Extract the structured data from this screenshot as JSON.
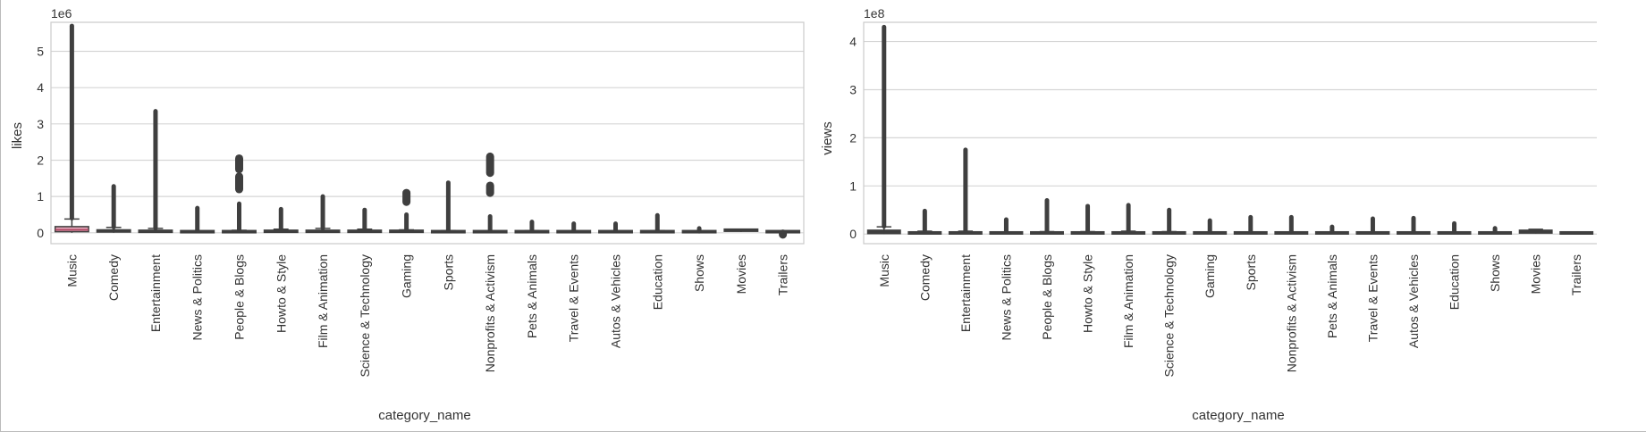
{
  "chart_data": [
    {
      "type": "box",
      "xlabel": "category_name",
      "ylabel": "likes",
      "offset_label": "1e6",
      "ylim": [
        -0.3,
        5.8
      ],
      "yticks": [
        0,
        1,
        2,
        3,
        4,
        5
      ],
      "ytick_labels": [
        "0",
        "1",
        "2",
        "3",
        "4",
        "5"
      ],
      "grid": "horizontal",
      "categories": [
        "Music",
        "Comedy",
        "Entertainment",
        "News & Politics",
        "People & Blogs",
        "Howto & Style",
        "Film & Animation",
        "Science & Technology",
        "Gaming",
        "Sports",
        "Nonprofits & Activism",
        "Pets & Animals",
        "Travel & Events",
        "Autos & Vehicles",
        "Education",
        "Shows",
        "Movies",
        "Trailers"
      ],
      "boxes": [
        {
          "q1": 0.03,
          "median": 0.08,
          "q3": 0.17,
          "whisker_low": 0.0,
          "whisker_high": 0.38,
          "outlier_min": 0.4,
          "outlier_max": 5.7,
          "clusters": []
        },
        {
          "q1": 0.02,
          "median": 0.04,
          "q3": 0.08,
          "whisker_low": 0.0,
          "whisker_high": 0.15,
          "outlier_min": 0.16,
          "outlier_max": 1.28,
          "clusters": []
        },
        {
          "q1": 0.01,
          "median": 0.03,
          "q3": 0.07,
          "whisker_low": 0.0,
          "whisker_high": 0.12,
          "outlier_min": 0.13,
          "outlier_max": 3.35,
          "clusters": []
        },
        {
          "q1": 0.0,
          "median": 0.01,
          "q3": 0.02,
          "whisker_low": 0.0,
          "whisker_high": 0.05,
          "outlier_min": 0.06,
          "outlier_max": 0.68,
          "clusters": []
        },
        {
          "q1": 0.0,
          "median": 0.01,
          "q3": 0.03,
          "whisker_low": 0.0,
          "whisker_high": 0.07,
          "outlier_min": 0.08,
          "outlier_max": 0.8,
          "clusters": [
            [
              1.2,
              1.55
            ],
            [
              1.75,
              2.05
            ]
          ]
        },
        {
          "q1": 0.01,
          "median": 0.02,
          "q3": 0.05,
          "whisker_low": 0.0,
          "whisker_high": 0.1,
          "outlier_min": 0.11,
          "outlier_max": 0.65,
          "clusters": []
        },
        {
          "q1": 0.01,
          "median": 0.02,
          "q3": 0.06,
          "whisker_low": 0.0,
          "whisker_high": 0.12,
          "outlier_min": 0.13,
          "outlier_max": 1.0,
          "clusters": []
        },
        {
          "q1": 0.01,
          "median": 0.02,
          "q3": 0.05,
          "whisker_low": 0.0,
          "whisker_high": 0.1,
          "outlier_min": 0.11,
          "outlier_max": 0.63,
          "clusters": []
        },
        {
          "q1": 0.01,
          "median": 0.02,
          "q3": 0.04,
          "whisker_low": 0.0,
          "whisker_high": 0.08,
          "outlier_min": 0.09,
          "outlier_max": 0.5,
          "clusters": [
            [
              0.85,
              1.1
            ]
          ]
        },
        {
          "q1": 0.0,
          "median": 0.01,
          "q3": 0.03,
          "whisker_low": 0.0,
          "whisker_high": 0.06,
          "outlier_min": 0.07,
          "outlier_max": 1.38,
          "clusters": []
        },
        {
          "q1": 0.0,
          "median": 0.01,
          "q3": 0.02,
          "whisker_low": 0.0,
          "whisker_high": 0.04,
          "outlier_min": 0.05,
          "outlier_max": 0.45,
          "clusters": [
            [
              1.1,
              1.3
            ],
            [
              1.65,
              2.1
            ]
          ]
        },
        {
          "q1": 0.0,
          "median": 0.01,
          "q3": 0.03,
          "whisker_low": 0.0,
          "whisker_high": 0.06,
          "outlier_min": 0.07,
          "outlier_max": 0.3,
          "clusters": []
        },
        {
          "q1": 0.0,
          "median": 0.01,
          "q3": 0.02,
          "whisker_low": 0.0,
          "whisker_high": 0.05,
          "outlier_min": 0.06,
          "outlier_max": 0.25,
          "clusters": []
        },
        {
          "q1": 0.0,
          "median": 0.01,
          "q3": 0.02,
          "whisker_low": 0.0,
          "whisker_high": 0.05,
          "outlier_min": 0.06,
          "outlier_max": 0.25,
          "clusters": []
        },
        {
          "q1": 0.0,
          "median": 0.01,
          "q3": 0.03,
          "whisker_low": 0.0,
          "whisker_high": 0.06,
          "outlier_min": 0.07,
          "outlier_max": 0.48,
          "clusters": []
        },
        {
          "q1": 0.0,
          "median": 0.01,
          "q3": 0.02,
          "whisker_low": 0.0,
          "whisker_high": 0.03,
          "outlier_min": 0.04,
          "outlier_max": 0.12,
          "clusters": []
        },
        {
          "q1": 0.04,
          "median": 0.06,
          "q3": 0.09,
          "whisker_low": 0.02,
          "whisker_high": 0.1,
          "outlier_min": null,
          "outlier_max": null,
          "clusters": []
        },
        {
          "q1": 0.0,
          "median": 0.0,
          "q3": 0.01,
          "whisker_low": 0.0,
          "whisker_high": 0.01,
          "outlier_min": null,
          "outlier_max": null,
          "clusters": [
            [
              -0.05,
              -0.02
            ]
          ]
        }
      ]
    },
    {
      "type": "box",
      "xlabel": "category_name",
      "ylabel": "views",
      "offset_label": "1e8",
      "ylim": [
        -0.2,
        4.4
      ],
      "yticks": [
        0,
        1,
        2,
        3,
        4
      ],
      "ytick_labels": [
        "0",
        "1",
        "2",
        "3",
        "4"
      ],
      "grid": "horizontal",
      "categories": [
        "Music",
        "Comedy",
        "Entertainment",
        "News & Politics",
        "People & Blogs",
        "Howto & Style",
        "Film & Animation",
        "Science & Technology",
        "Gaming",
        "Sports",
        "Nonprofits & Activism",
        "Pets & Animals",
        "Travel & Events",
        "Autos & Vehicles",
        "Education",
        "Shows",
        "Movies",
        "Trailers"
      ],
      "boxes": [
        {
          "q1": 0.01,
          "median": 0.03,
          "q3": 0.08,
          "whisker_low": 0.0,
          "whisker_high": 0.15,
          "outlier_min": 0.16,
          "outlier_max": 4.3,
          "clusters": []
        },
        {
          "q1": 0.0,
          "median": 0.01,
          "q3": 0.03,
          "whisker_low": 0.0,
          "whisker_high": 0.06,
          "outlier_min": 0.07,
          "outlier_max": 0.48,
          "clusters": []
        },
        {
          "q1": 0.0,
          "median": 0.01,
          "q3": 0.03,
          "whisker_low": 0.0,
          "whisker_high": 0.06,
          "outlier_min": 0.07,
          "outlier_max": 1.75,
          "clusters": []
        },
        {
          "q1": 0.0,
          "median": 0.01,
          "q3": 0.02,
          "whisker_low": 0.0,
          "whisker_high": 0.04,
          "outlier_min": 0.05,
          "outlier_max": 0.3,
          "clusters": []
        },
        {
          "q1": 0.0,
          "median": 0.01,
          "q3": 0.02,
          "whisker_low": 0.0,
          "whisker_high": 0.05,
          "outlier_min": 0.06,
          "outlier_max": 0.7,
          "clusters": []
        },
        {
          "q1": 0.0,
          "median": 0.01,
          "q3": 0.03,
          "whisker_low": 0.0,
          "whisker_high": 0.05,
          "outlier_min": 0.06,
          "outlier_max": 0.58,
          "clusters": []
        },
        {
          "q1": 0.0,
          "median": 0.01,
          "q3": 0.03,
          "whisker_low": 0.0,
          "whisker_high": 0.06,
          "outlier_min": 0.07,
          "outlier_max": 0.6,
          "clusters": []
        },
        {
          "q1": 0.0,
          "median": 0.01,
          "q3": 0.03,
          "whisker_low": 0.0,
          "whisker_high": 0.05,
          "outlier_min": 0.06,
          "outlier_max": 0.5,
          "clusters": []
        },
        {
          "q1": 0.0,
          "median": 0.01,
          "q3": 0.02,
          "whisker_low": 0.0,
          "whisker_high": 0.04,
          "outlier_min": 0.05,
          "outlier_max": 0.28,
          "clusters": []
        },
        {
          "q1": 0.0,
          "median": 0.01,
          "q3": 0.02,
          "whisker_low": 0.0,
          "whisker_high": 0.04,
          "outlier_min": 0.05,
          "outlier_max": 0.35,
          "clusters": []
        },
        {
          "q1": 0.0,
          "median": 0.01,
          "q3": 0.02,
          "whisker_low": 0.0,
          "whisker_high": 0.03,
          "outlier_min": 0.04,
          "outlier_max": 0.35,
          "clusters": []
        },
        {
          "q1": 0.0,
          "median": 0.01,
          "q3": 0.02,
          "whisker_low": 0.0,
          "whisker_high": 0.03,
          "outlier_min": 0.04,
          "outlier_max": 0.15,
          "clusters": []
        },
        {
          "q1": 0.0,
          "median": 0.01,
          "q3": 0.02,
          "whisker_low": 0.0,
          "whisker_high": 0.04,
          "outlier_min": 0.05,
          "outlier_max": 0.32,
          "clusters": []
        },
        {
          "q1": 0.0,
          "median": 0.01,
          "q3": 0.02,
          "whisker_low": 0.0,
          "whisker_high": 0.04,
          "outlier_min": 0.05,
          "outlier_max": 0.33,
          "clusters": []
        },
        {
          "q1": 0.0,
          "median": 0.01,
          "q3": 0.02,
          "whisker_low": 0.0,
          "whisker_high": 0.03,
          "outlier_min": 0.04,
          "outlier_max": 0.22,
          "clusters": []
        },
        {
          "q1": 0.0,
          "median": 0.01,
          "q3": 0.02,
          "whisker_low": 0.0,
          "whisker_high": 0.03,
          "outlier_min": 0.04,
          "outlier_max": 0.12,
          "clusters": []
        },
        {
          "q1": 0.02,
          "median": 0.04,
          "q3": 0.08,
          "whisker_low": 0.01,
          "whisker_high": 0.1,
          "outlier_min": null,
          "outlier_max": null,
          "clusters": []
        },
        {
          "q1": 0.0,
          "median": 0.0,
          "q3": 0.01,
          "whisker_low": 0.0,
          "whisker_high": 0.01,
          "outlier_min": null,
          "outlier_max": null,
          "clusters": []
        }
      ]
    }
  ],
  "colors": {
    "box_edge": "#3f3f3f",
    "music_box_fill": "#dc9eb0",
    "music_median": "#b0405e",
    "box_fill": "#3f3f3f",
    "grid": "#d6d6d6",
    "axes_edge": "#cccccc",
    "text": "#333333"
  }
}
